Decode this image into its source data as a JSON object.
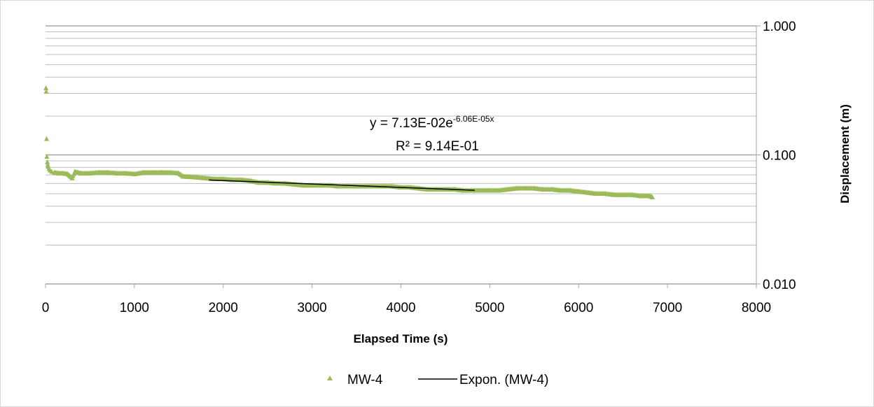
{
  "chart_data": {
    "type": "scatter",
    "title": "",
    "xlabel": "Elapsed Time (s)",
    "ylabel": "Displacement (m)",
    "x_ticks": [
      "0",
      "1000",
      "2000",
      "3000",
      "4000",
      "5000",
      "6000",
      "7000",
      "8000"
    ],
    "y_ticks": [
      "1.000",
      "0.100",
      "0.010"
    ],
    "xlim": [
      0,
      8000
    ],
    "ylim": [
      0.01,
      1.0
    ],
    "y_scale": "log",
    "grid": "horizontal major and minor",
    "legend_position": "bottom",
    "y_axis_side": "right",
    "series": [
      {
        "name": "MW-4",
        "marker": "triangle",
        "color": "#9BBB59",
        "points": [
          [
            5,
            0.33
          ],
          [
            8,
            0.31
          ],
          [
            12,
            0.133
          ],
          [
            15,
            0.097
          ],
          [
            20,
            0.088
          ],
          [
            25,
            0.084
          ],
          [
            30,
            0.081
          ],
          [
            40,
            0.078
          ],
          [
            50,
            0.076
          ],
          [
            70,
            0.074
          ],
          [
            100,
            0.073
          ],
          [
            150,
            0.072
          ],
          [
            200,
            0.072
          ],
          [
            250,
            0.071
          ],
          [
            300,
            0.066
          ],
          [
            330,
            0.074
          ],
          [
            400,
            0.072
          ],
          [
            500,
            0.072
          ],
          [
            600,
            0.073
          ],
          [
            700,
            0.073
          ],
          [
            800,
            0.072
          ],
          [
            900,
            0.072
          ],
          [
            1000,
            0.071
          ],
          [
            1100,
            0.073
          ],
          [
            1200,
            0.073
          ],
          [
            1300,
            0.073
          ],
          [
            1400,
            0.073
          ],
          [
            1500,
            0.072
          ],
          [
            1550,
            0.068
          ],
          [
            1700,
            0.067
          ],
          [
            1800,
            0.066
          ],
          [
            1900,
            0.065
          ],
          [
            2000,
            0.065
          ],
          [
            2100,
            0.064
          ],
          [
            2200,
            0.064
          ],
          [
            2300,
            0.063
          ],
          [
            2400,
            0.061
          ],
          [
            2500,
            0.061
          ],
          [
            2600,
            0.06
          ],
          [
            2700,
            0.06
          ],
          [
            2800,
            0.059
          ],
          [
            2900,
            0.058
          ],
          [
            3000,
            0.058
          ],
          [
            3100,
            0.058
          ],
          [
            3200,
            0.058
          ],
          [
            3300,
            0.057
          ],
          [
            3400,
            0.057
          ],
          [
            3500,
            0.057
          ],
          [
            3600,
            0.057
          ],
          [
            3700,
            0.057
          ],
          [
            3800,
            0.057
          ],
          [
            3900,
            0.057
          ],
          [
            4000,
            0.056
          ],
          [
            4100,
            0.056
          ],
          [
            4200,
            0.055
          ],
          [
            4300,
            0.054
          ],
          [
            4400,
            0.054
          ],
          [
            4500,
            0.054
          ],
          [
            4600,
            0.054
          ],
          [
            4700,
            0.053
          ],
          [
            4800,
            0.053
          ],
          [
            4900,
            0.053
          ],
          [
            5000,
            0.053
          ],
          [
            5100,
            0.053
          ],
          [
            5200,
            0.054
          ],
          [
            5300,
            0.055
          ],
          [
            5400,
            0.055
          ],
          [
            5500,
            0.055
          ],
          [
            5600,
            0.054
          ],
          [
            5700,
            0.054
          ],
          [
            5800,
            0.053
          ],
          [
            5900,
            0.053
          ],
          [
            6000,
            0.052
          ],
          [
            6100,
            0.051
          ],
          [
            6200,
            0.05
          ],
          [
            6300,
            0.05
          ],
          [
            6400,
            0.049
          ],
          [
            6500,
            0.049
          ],
          [
            6600,
            0.049
          ],
          [
            6700,
            0.048
          ],
          [
            6800,
            0.048
          ],
          [
            6830,
            0.047
          ]
        ]
      },
      {
        "name": "Expon. (MW-4)",
        "type": "line",
        "color": "#000000",
        "points": [
          [
            1840,
            0.0639
          ],
          [
            4830,
            0.0532
          ]
        ]
      }
    ],
    "annotations": {
      "equation_prefix": "y = 7.13E-02e",
      "equation_exponent": "-6.06E-05x",
      "r_squared": "R² = 9.14E-01"
    }
  }
}
